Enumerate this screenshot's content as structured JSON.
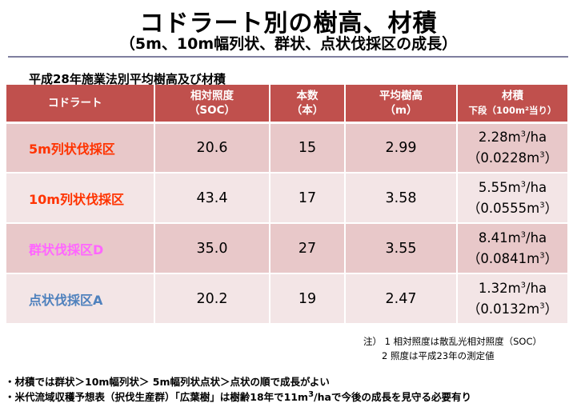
{
  "title": "コドラート別の樹高、材積",
  "subtitle": "（5m、10m幅列状、群状、点状伐採区の成長）",
  "caption": "平成28年施業法別平均樹高及び材積",
  "table": {
    "headers": [
      {
        "line1": "コドラート",
        "line2": ""
      },
      {
        "line1": "相対照度",
        "line2": "（SOC）"
      },
      {
        "line1": "本数",
        "line2": "（本）"
      },
      {
        "line1": "平均樹高",
        "line2": "（m）"
      },
      {
        "line1": "材積",
        "line2": "下段（100m²当り）"
      }
    ],
    "rows": [
      {
        "name": "5m列状伐採区",
        "name_color": "#ff3300",
        "soc": "20.6",
        "count": "15",
        "height": "2.99",
        "vol_ha": "2.28",
        "vol_100": "（0.0228m"
      },
      {
        "name": "10m列状伐採区",
        "name_color": "#ff3300",
        "soc": "43.4",
        "count": "17",
        "height": "3.58",
        "vol_ha": "5.55",
        "vol_100": "（0.0555m"
      },
      {
        "name": "群状伐採区D",
        "name_color": "#ff66ff",
        "soc": "35.0",
        "count": "27",
        "height": "3.55",
        "vol_ha": "8.41",
        "vol_100": "（0.0841m"
      },
      {
        "name": "点状伐採区A",
        "name_color": "#4f81bd",
        "soc": "20.2",
        "count": "19",
        "height": "2.47",
        "vol_ha": "1.32",
        "vol_100": "（0.0132m"
      }
    ],
    "vol_unit_prefix": "m",
    "vol_unit_sup": "3",
    "vol_unit_suffix": "/ha",
    "vol_close": "）"
  },
  "notes": {
    "line1": "注）  1  相対照度は散乱光相対照度（SOC）",
    "line2": "2  照度は平成23年の測定値"
  },
  "summary": {
    "line1": "・材積では群状＞10m幅列状＞ 5m幅列状点状＞点状の順で成長がよい",
    "line2a": "・米代流域収穫予想表（択伐生産群）「広葉樹」は樹齢18年で11m",
    "line2sup": "3",
    "line2b": "/haで今後の成長を見守る必要有り"
  }
}
